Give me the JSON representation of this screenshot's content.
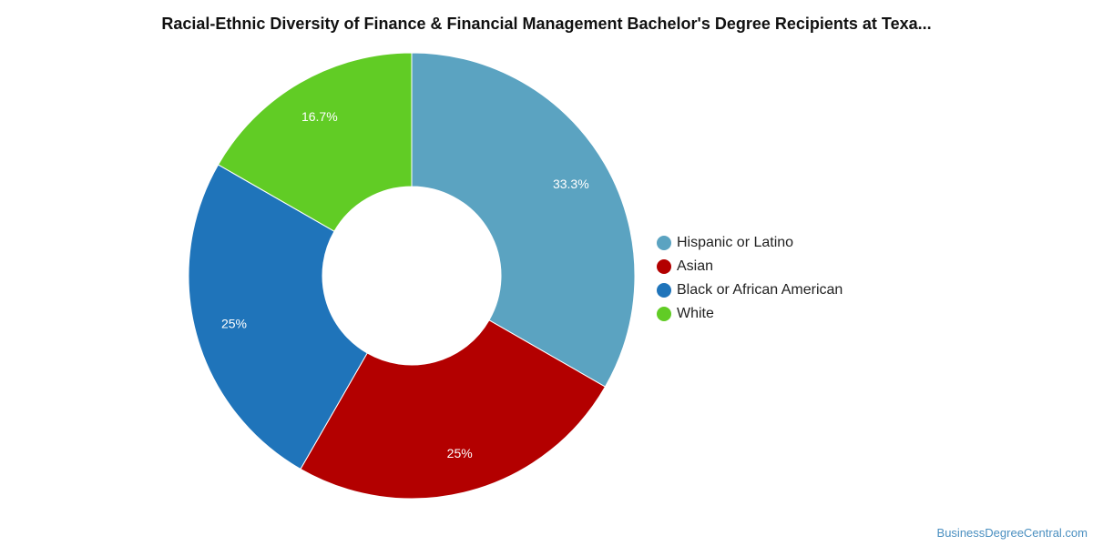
{
  "chart_data": {
    "type": "pie",
    "title": "Racial-Ethnic Diversity of Finance & Financial Management Bachelor's Degree Recipients at Texa...",
    "categories": [
      "Hispanic or Latino",
      "Asian",
      "Black or African American",
      "White"
    ],
    "values": [
      33.3,
      25,
      25,
      16.7
    ],
    "labels": [
      "33.3%",
      "25%",
      "25%",
      "16.7%"
    ],
    "colors": [
      "#5ba3c1",
      "#b30000",
      "#1f74ba",
      "#61cc25"
    ],
    "legend_position": "right",
    "donut": true
  },
  "source": "BusinessDegreeCentral.com"
}
